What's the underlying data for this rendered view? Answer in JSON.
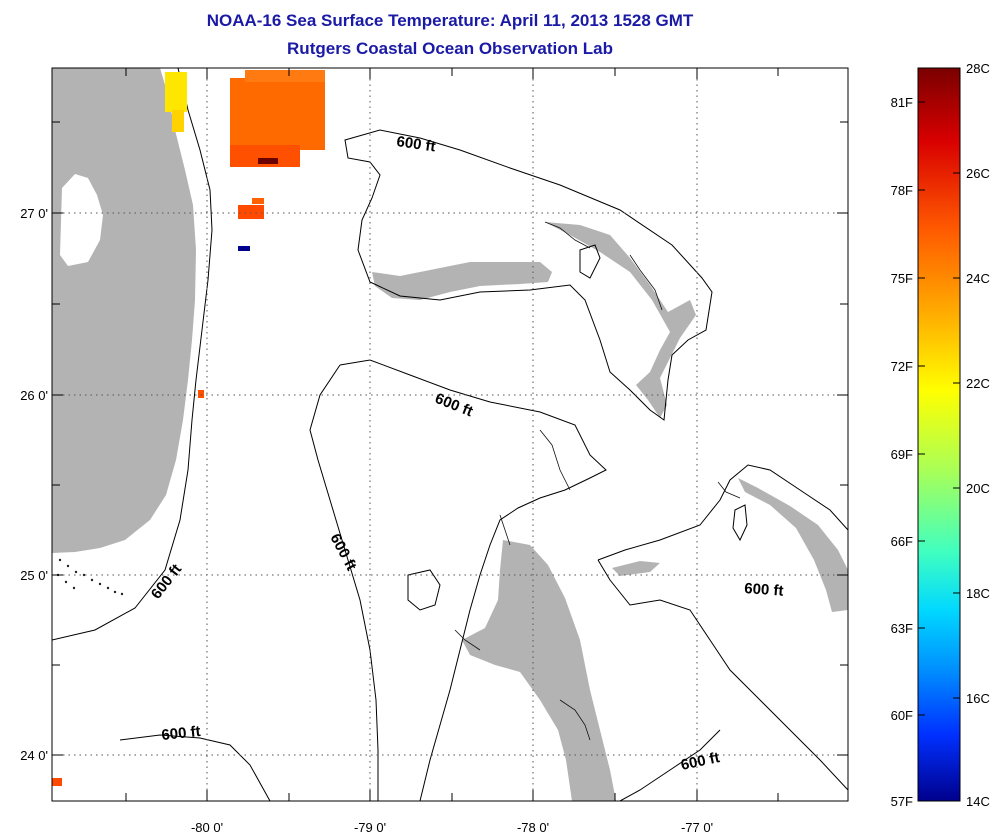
{
  "title": "NOAA-16 Sea Surface Temperature:  April 11, 2013 1528 GMT",
  "subtitle": "Rutgers Coastal Ocean Observation Lab",
  "x_ticks": [
    "-80 0'",
    "-79 0'",
    "-78 0'",
    "-77 0'"
  ],
  "y_ticks": [
    "27 0'",
    "26 0'",
    "25 0'",
    "24 0'"
  ],
  "contour_label": "600 ft",
  "colorbar": {
    "celsius": [
      "28C",
      "26C",
      "24C",
      "22C",
      "20C",
      "18C",
      "16C",
      "14C"
    ],
    "fahrenheit": [
      "81F",
      "78F",
      "75F",
      "72F",
      "69F",
      "66F",
      "63F",
      "60F",
      "57F"
    ],
    "colors": [
      "#7a0000",
      "#d90000",
      "#ff5a00",
      "#ffb000",
      "#ffff00",
      "#a8ff58",
      "#40ffc0",
      "#00d8ff",
      "#0090ff",
      "#0030ff",
      "#00008c"
    ]
  },
  "colors": {
    "title": "#1a1aa6",
    "land": "#b3b3b3",
    "grid": "#555555"
  }
}
